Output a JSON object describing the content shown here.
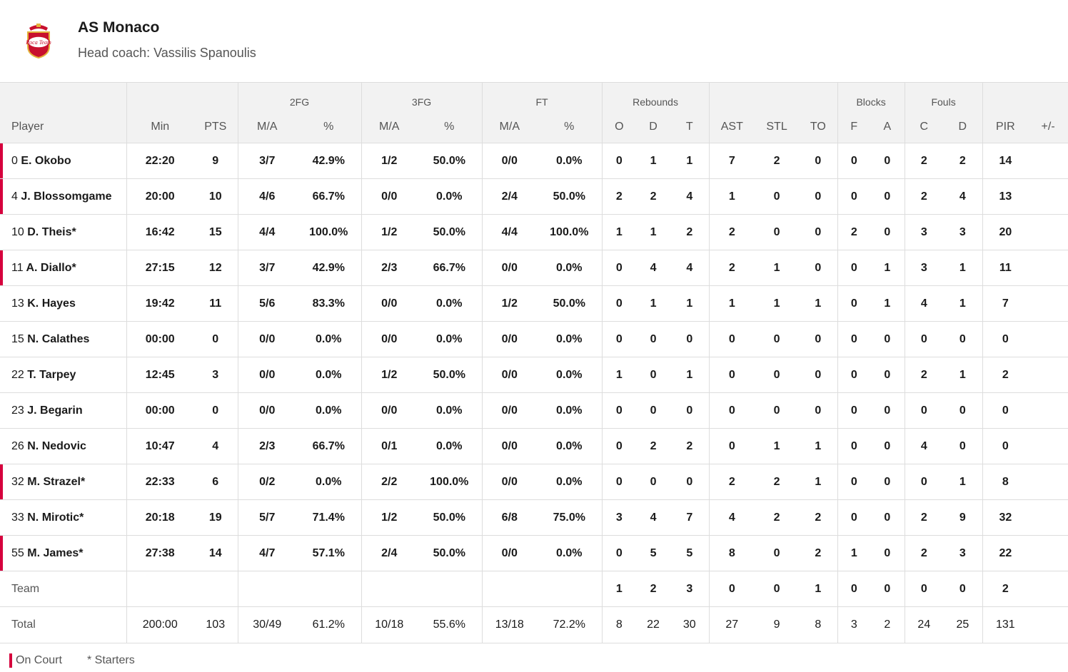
{
  "team": {
    "name": "AS Monaco",
    "coach": "Head coach: Vassilis Spanoulis",
    "logo_text": "Roca Team"
  },
  "groups": {
    "fg2": "2FG",
    "fg3": "3FG",
    "ft": "FT",
    "reb": "Rebounds",
    "blk": "Blocks",
    "fouls": "Fouls"
  },
  "headers": {
    "player": "Player",
    "min": "Min",
    "pts": "PTS",
    "ma": "M/A",
    "pct": "%",
    "o": "O",
    "d": "D",
    "t": "T",
    "ast": "AST",
    "stl": "STL",
    "to": "TO",
    "f": "F",
    "a": "A",
    "c": "C",
    "fd": "D",
    "pir": "PIR",
    "pm": "+/-"
  },
  "players": [
    {
      "num": "0",
      "name": "E. Okobo",
      "on": true,
      "s": [
        "22:20",
        "9",
        "3/7",
        "42.9%",
        "1/2",
        "50.0%",
        "0/0",
        "0.0%",
        "0",
        "1",
        "1",
        "7",
        "2",
        "0",
        "0",
        "0",
        "2",
        "2",
        "14",
        ""
      ]
    },
    {
      "num": "4",
      "name": "J. Blossomgame",
      "on": true,
      "s": [
        "20:00",
        "10",
        "4/6",
        "66.7%",
        "0/0",
        "0.0%",
        "2/4",
        "50.0%",
        "2",
        "2",
        "4",
        "1",
        "0",
        "0",
        "0",
        "0",
        "2",
        "4",
        "13",
        ""
      ]
    },
    {
      "num": "10",
      "name": "D. Theis*",
      "on": false,
      "s": [
        "16:42",
        "15",
        "4/4",
        "100.0%",
        "1/2",
        "50.0%",
        "4/4",
        "100.0%",
        "1",
        "1",
        "2",
        "2",
        "0",
        "0",
        "2",
        "0",
        "3",
        "3",
        "20",
        ""
      ]
    },
    {
      "num": "11",
      "name": "A. Diallo*",
      "on": true,
      "s": [
        "27:15",
        "12",
        "3/7",
        "42.9%",
        "2/3",
        "66.7%",
        "0/0",
        "0.0%",
        "0",
        "4",
        "4",
        "2",
        "1",
        "0",
        "0",
        "1",
        "3",
        "1",
        "11",
        ""
      ]
    },
    {
      "num": "13",
      "name": "K. Hayes",
      "on": false,
      "s": [
        "19:42",
        "11",
        "5/6",
        "83.3%",
        "0/0",
        "0.0%",
        "1/2",
        "50.0%",
        "0",
        "1",
        "1",
        "1",
        "1",
        "1",
        "0",
        "1",
        "4",
        "1",
        "7",
        ""
      ]
    },
    {
      "num": "15",
      "name": "N. Calathes",
      "on": false,
      "s": [
        "00:00",
        "0",
        "0/0",
        "0.0%",
        "0/0",
        "0.0%",
        "0/0",
        "0.0%",
        "0",
        "0",
        "0",
        "0",
        "0",
        "0",
        "0",
        "0",
        "0",
        "0",
        "0",
        ""
      ]
    },
    {
      "num": "22",
      "name": "T. Tarpey",
      "on": false,
      "s": [
        "12:45",
        "3",
        "0/0",
        "0.0%",
        "1/2",
        "50.0%",
        "0/0",
        "0.0%",
        "1",
        "0",
        "1",
        "0",
        "0",
        "0",
        "0",
        "0",
        "2",
        "1",
        "2",
        ""
      ]
    },
    {
      "num": "23",
      "name": "J. Begarin",
      "on": false,
      "s": [
        "00:00",
        "0",
        "0/0",
        "0.0%",
        "0/0",
        "0.0%",
        "0/0",
        "0.0%",
        "0",
        "0",
        "0",
        "0",
        "0",
        "0",
        "0",
        "0",
        "0",
        "0",
        "0",
        ""
      ]
    },
    {
      "num": "26",
      "name": "N. Nedovic",
      "on": false,
      "s": [
        "10:47",
        "4",
        "2/3",
        "66.7%",
        "0/1",
        "0.0%",
        "0/0",
        "0.0%",
        "0",
        "2",
        "2",
        "0",
        "1",
        "1",
        "0",
        "0",
        "4",
        "0",
        "0",
        ""
      ]
    },
    {
      "num": "32",
      "name": "M. Strazel*",
      "on": true,
      "s": [
        "22:33",
        "6",
        "0/2",
        "0.0%",
        "2/2",
        "100.0%",
        "0/0",
        "0.0%",
        "0",
        "0",
        "0",
        "2",
        "2",
        "1",
        "0",
        "0",
        "0",
        "1",
        "8",
        ""
      ]
    },
    {
      "num": "33",
      "name": "N. Mirotic*",
      "on": false,
      "s": [
        "20:18",
        "19",
        "5/7",
        "71.4%",
        "1/2",
        "50.0%",
        "6/8",
        "75.0%",
        "3",
        "4",
        "7",
        "4",
        "2",
        "2",
        "0",
        "0",
        "2",
        "9",
        "32",
        ""
      ]
    },
    {
      "num": "55",
      "name": "M. James*",
      "on": true,
      "s": [
        "27:38",
        "14",
        "4/7",
        "57.1%",
        "2/4",
        "50.0%",
        "0/0",
        "0.0%",
        "0",
        "5",
        "5",
        "8",
        "0",
        "2",
        "1",
        "0",
        "2",
        "3",
        "22",
        ""
      ]
    }
  ],
  "team_row": {
    "label": "Team",
    "s": [
      "",
      "",
      "",
      "",
      "",
      "",
      "",
      "",
      "1",
      "2",
      "3",
      "0",
      "0",
      "1",
      "0",
      "0",
      "0",
      "0",
      "2",
      ""
    ]
  },
  "total_row": {
    "label": "Total",
    "s": [
      "200:00",
      "103",
      "30/49",
      "61.2%",
      "10/18",
      "55.6%",
      "13/18",
      "72.2%",
      "8",
      "22",
      "30",
      "27",
      "9",
      "8",
      "3",
      "2",
      "24",
      "25",
      "131",
      ""
    ]
  },
  "legend": {
    "on_court": "On Court",
    "starters": "* Starters"
  }
}
